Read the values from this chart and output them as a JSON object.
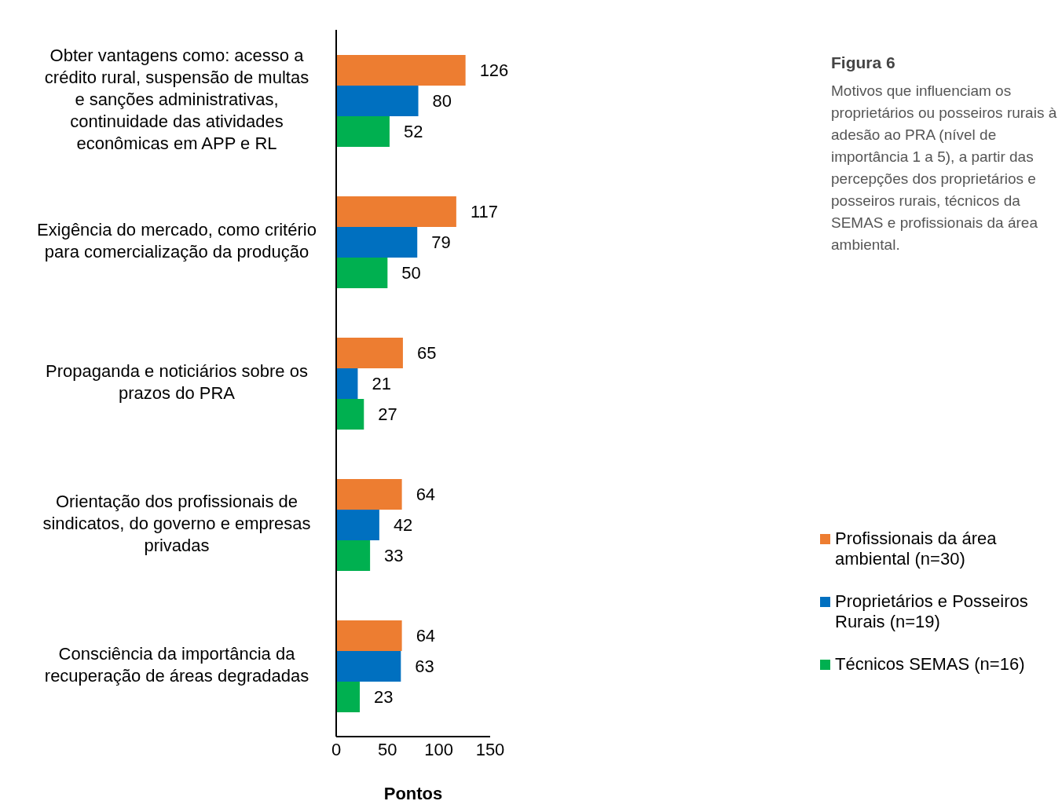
{
  "chart_data": {
    "type": "bar",
    "orientation": "horizontal",
    "title": "Figura 6",
    "subtitle": "Motivos que influenciam os proprietários ou posseiros rurais à adesão ao PRA (nível de importância 1 a 5), a partir das percepções dos proprietários e posseiros rurais, técnicos da SEMAS e profissionais da área ambiental.",
    "categories": [
      "Obter vantagens como: acesso a crédito rural, suspensão de multas e sanções administrativas, continuidade das atividades econômicas em APP e RL",
      "Exigência do mercado, como critério para comercialização da produção",
      "Propaganda e noticiários sobre os prazos do PRA",
      "Orientação dos profissionais de sindicatos, do governo e empresas privadas",
      "Consciência da importância da recuperação de áreas degradadas"
    ],
    "series": [
      {
        "name": "Profissionais da área ambiental (n=30)",
        "color": "#ed7d31",
        "values": [
          126,
          117,
          65,
          64,
          64
        ]
      },
      {
        "name": "Proprietários e Posseiros Rurais (n=19)",
        "color": "#0070c0",
        "values": [
          80,
          79,
          21,
          42,
          63
        ]
      },
      {
        "name": "Técnicos SEMAS (n=16)",
        "color": "#00b050",
        "values": [
          52,
          50,
          27,
          33,
          23
        ]
      }
    ],
    "xlabel": "Pontos",
    "xlim": [
      0,
      150
    ],
    "xticks": [
      0,
      50,
      100,
      150
    ],
    "grid": false,
    "legend": "right",
    "data_labels": true
  }
}
